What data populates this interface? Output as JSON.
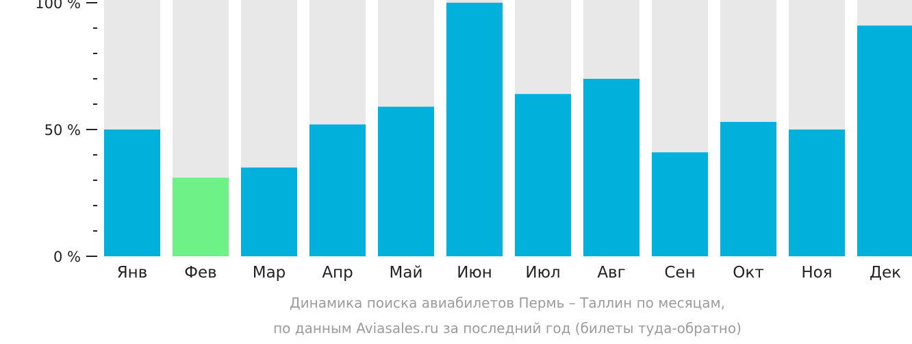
{
  "colors": {
    "bar": "#02b0dc",
    "highlight": "#6ef287",
    "track": "#e8e8e8",
    "axis": "#222222",
    "caption": "#9b9b9b"
  },
  "caption": {
    "line1": "Динамика поиска авиабилетов Пермь – Таллин по месяцам,",
    "line2": "по данным Aviasales.ru за последний год (билеты туда-обратно)"
  },
  "chart_data": {
    "type": "bar",
    "categories": [
      "Янв",
      "Фев",
      "Мар",
      "Апр",
      "Май",
      "Июн",
      "Июл",
      "Авг",
      "Сен",
      "Окт",
      "Ноя",
      "Дек"
    ],
    "values": [
      50,
      31,
      35,
      52,
      59,
      100,
      64,
      70,
      41,
      53,
      50,
      91
    ],
    "highlight_index": 1,
    "ylim": [
      0,
      100
    ],
    "y_ticks": [
      {
        "value": 0,
        "label": "0 %"
      },
      {
        "value": 50,
        "label": "50 %"
      },
      {
        "value": 100,
        "label": "100 %"
      }
    ],
    "y_minor_step": 10,
    "xlabel": "",
    "ylabel": "",
    "grid": false,
    "legend": "none"
  }
}
